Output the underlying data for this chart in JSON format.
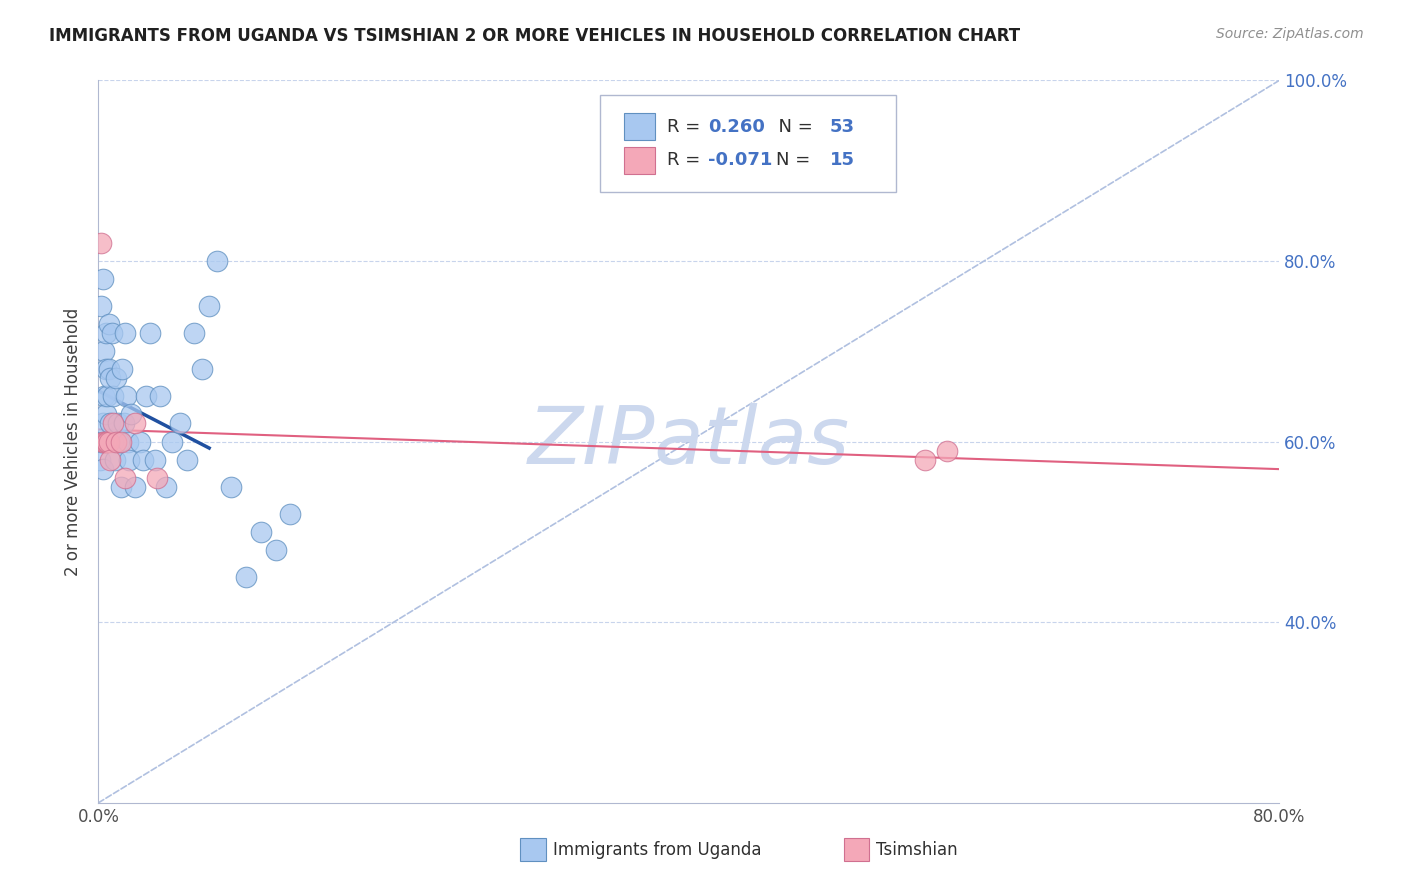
{
  "title": "IMMIGRANTS FROM UGANDA VS TSIMSHIAN 2 OR MORE VEHICLES IN HOUSEHOLD CORRELATION CHART",
  "source": "Source: ZipAtlas.com",
  "ylabel": "2 or more Vehicles in Household",
  "xlim": [
    0.0,
    0.8
  ],
  "ylim": [
    0.2,
    1.0
  ],
  "color_uganda": "#a8c8f0",
  "color_uganda_edge": "#6090c0",
  "color_tsimshian": "#f4a8b8",
  "color_tsimshian_edge": "#d07090",
  "line_color_uganda": "#2050a0",
  "line_color_tsimshian": "#e06080",
  "diagonal_color": "#b0c0e0",
  "watermark_color": "#ccd8ee",
  "uganda_x": [
    0.001,
    0.002,
    0.002,
    0.003,
    0.003,
    0.003,
    0.004,
    0.004,
    0.004,
    0.005,
    0.005,
    0.005,
    0.006,
    0.006,
    0.007,
    0.007,
    0.008,
    0.008,
    0.009,
    0.01,
    0.01,
    0.011,
    0.012,
    0.013,
    0.014,
    0.015,
    0.016,
    0.017,
    0.018,
    0.019,
    0.02,
    0.021,
    0.022,
    0.025,
    0.028,
    0.03,
    0.032,
    0.035,
    0.038,
    0.042,
    0.046,
    0.05,
    0.055,
    0.06,
    0.065,
    0.07,
    0.075,
    0.08,
    0.09,
    0.1,
    0.11,
    0.12,
    0.13
  ],
  "uganda_y": [
    0.58,
    0.6,
    0.75,
    0.78,
    0.62,
    0.57,
    0.7,
    0.65,
    0.6,
    0.68,
    0.63,
    0.72,
    0.65,
    0.6,
    0.68,
    0.73,
    0.62,
    0.67,
    0.72,
    0.6,
    0.65,
    0.58,
    0.67,
    0.62,
    0.6,
    0.55,
    0.68,
    0.62,
    0.72,
    0.65,
    0.6,
    0.58,
    0.63,
    0.55,
    0.6,
    0.58,
    0.65,
    0.72,
    0.58,
    0.65,
    0.55,
    0.6,
    0.62,
    0.58,
    0.72,
    0.68,
    0.75,
    0.8,
    0.55,
    0.45,
    0.5,
    0.48,
    0.52
  ],
  "tsimshian_x": [
    0.002,
    0.003,
    0.004,
    0.005,
    0.006,
    0.007,
    0.008,
    0.01,
    0.012,
    0.015,
    0.018,
    0.025,
    0.04,
    0.56,
    0.575
  ],
  "tsimshian_y": [
    0.82,
    0.6,
    0.6,
    0.6,
    0.6,
    0.6,
    0.58,
    0.62,
    0.6,
    0.6,
    0.56,
    0.62,
    0.56,
    0.58,
    0.59
  ]
}
